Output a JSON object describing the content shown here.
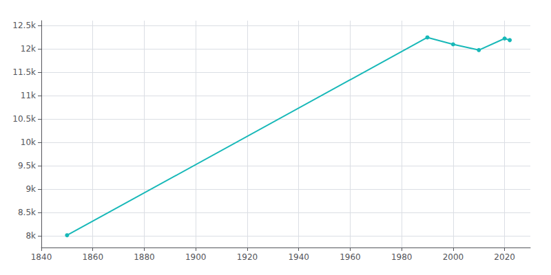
{
  "chart_data": {
    "type": "line",
    "x": [
      1850,
      1990,
      2000,
      2010,
      2020,
      2022
    ],
    "values": [
      8012,
      12241,
      12093,
      11971,
      12218,
      12183
    ],
    "color": "#17b8b8",
    "marker": "circle",
    "xlim": [
      1840,
      2030
    ],
    "xticks": [
      1840,
      1860,
      1880,
      1900,
      1920,
      1940,
      1960,
      1980,
      2000,
      2020
    ],
    "ylim": [
      7750,
      12600
    ],
    "yticks": [
      {
        "value": 8000,
        "label": "8k"
      },
      {
        "value": 8500,
        "label": "8.5k"
      },
      {
        "value": 9000,
        "label": "9k"
      },
      {
        "value": 9500,
        "label": "9.5k"
      },
      {
        "value": 10000,
        "label": "10k"
      },
      {
        "value": 10500,
        "label": "10.5k"
      },
      {
        "value": 11000,
        "label": "11k"
      },
      {
        "value": 11500,
        "label": "11.5k"
      },
      {
        "value": 12000,
        "label": "12k"
      },
      {
        "value": 12500,
        "label": "12.5k"
      }
    ],
    "grid": true
  }
}
